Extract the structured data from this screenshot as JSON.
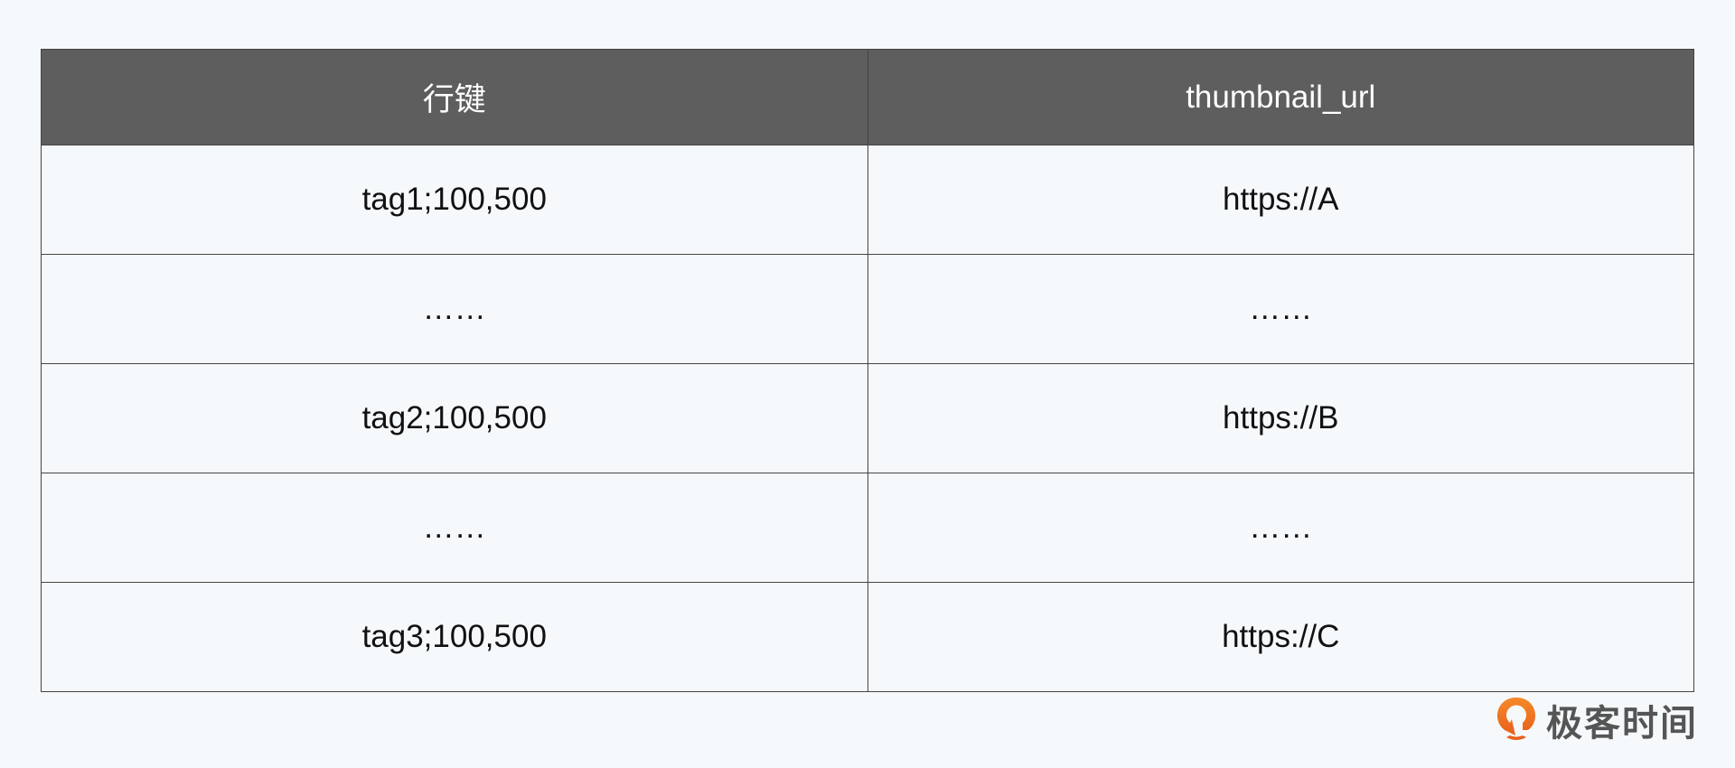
{
  "table": {
    "headers": [
      "行键",
      "thumbnail_url"
    ],
    "rows": [
      [
        "tag1;100,500",
        "https://A"
      ],
      [
        "……",
        "……"
      ],
      [
        "tag2;100,500",
        "https://B"
      ],
      [
        "……",
        "……"
      ],
      [
        "tag3;100,500",
        "https://C"
      ]
    ]
  },
  "logo": {
    "text": "极客时间",
    "icon": "geektime-logo-icon",
    "color": "#f07a1c"
  }
}
